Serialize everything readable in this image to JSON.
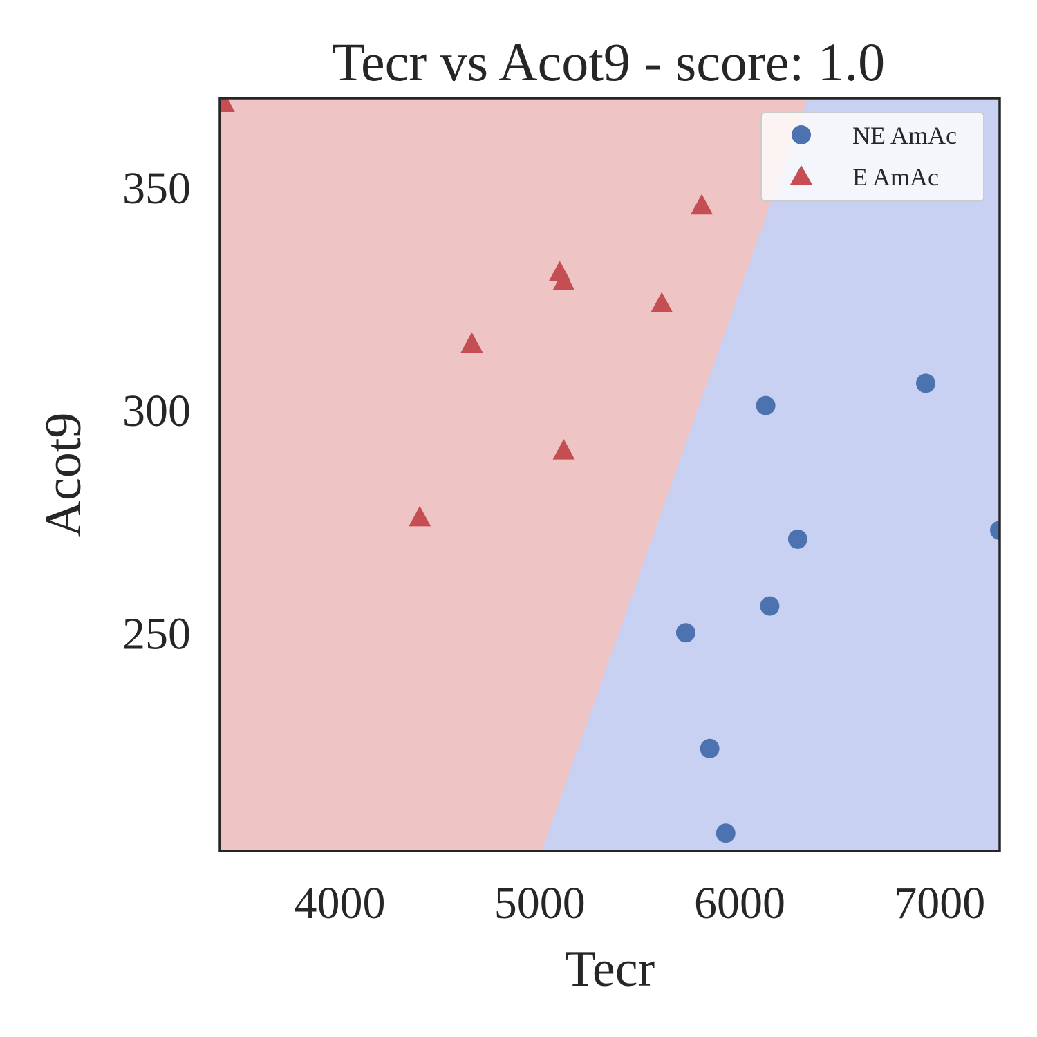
{
  "chart_data": {
    "type": "scatter",
    "title": "Tecr vs Acot9 - score: 1.0",
    "xlabel": "Tecr",
    "ylabel": "Acot9",
    "xlim": [
      3400,
      7300
    ],
    "ylim": [
      201,
      370
    ],
    "xticks": [
      4000,
      5000,
      6000,
      7000
    ],
    "yticks": [
      250,
      300,
      350
    ],
    "grid": false,
    "legend_position": "top-right",
    "regions": [
      {
        "label": "E AmAc",
        "color": "#eec5c4"
      },
      {
        "label": "NE AmAc",
        "color": "#c8d1f1"
      }
    ],
    "decision_boundary": [
      [
        5010,
        201
      ],
      [
        6340,
        370
      ]
    ],
    "series": [
      {
        "name": "NE AmAc",
        "marker": "circle",
        "color": "#4c72b0",
        "points": [
          [
            5730,
            250
          ],
          [
            5850,
            224
          ],
          [
            5930,
            205
          ],
          [
            6130,
            301
          ],
          [
            6150,
            256
          ],
          [
            6290,
            271
          ],
          [
            6930,
            306
          ],
          [
            7300,
            273
          ]
        ]
      },
      {
        "name": "E AmAc",
        "marker": "triangle",
        "color": "#c44e52",
        "points": [
          [
            3420,
            369
          ],
          [
            4400,
            276
          ],
          [
            4660,
            315
          ],
          [
            5100,
            331
          ],
          [
            5120,
            329
          ],
          [
            5120,
            291
          ],
          [
            5610,
            324
          ],
          [
            5810,
            346
          ]
        ]
      }
    ]
  }
}
